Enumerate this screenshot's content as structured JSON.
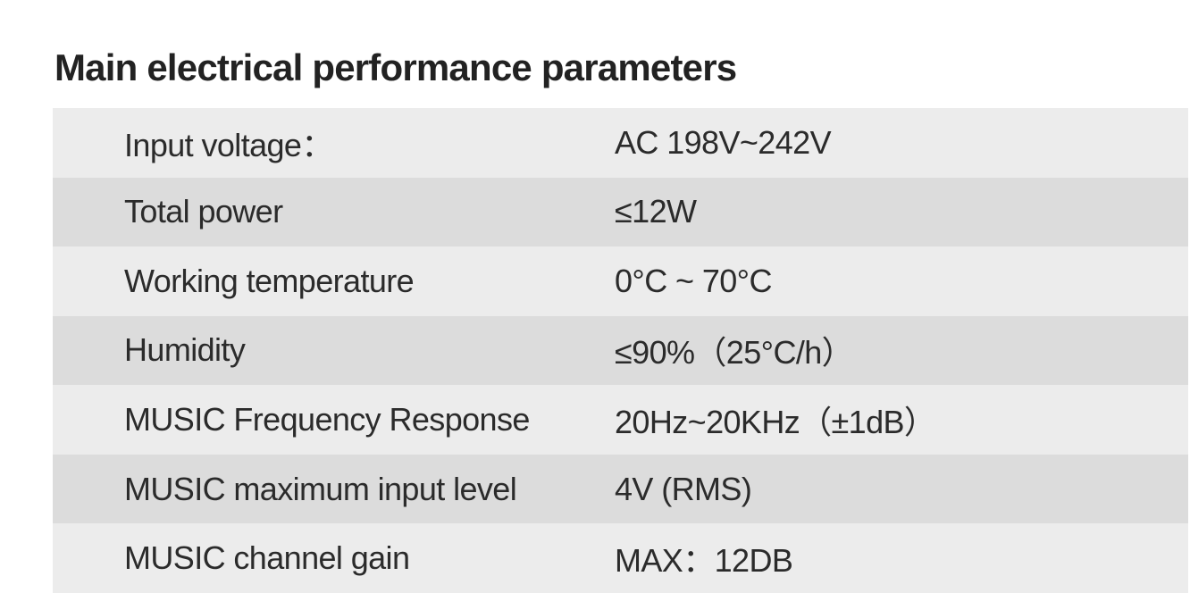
{
  "title": "Main electrical performance parameters",
  "parameters": [
    {
      "label": "Input voltage：",
      "value": "AC 198V~242V"
    },
    {
      "label": "Total power",
      "value": "≤12W"
    },
    {
      "label": "Working temperature",
      "value": "0°C ~ 70°C"
    },
    {
      "label": "Humidity",
      "value": "≤90%（25°C/h）"
    },
    {
      "label": "MUSIC Frequency Response",
      "value": "20Hz~20KHz（±1dB）"
    },
    {
      "label": "MUSIC maximum input level",
      "value": "4V  (RMS)"
    },
    {
      "label": "MUSIC channel gain",
      "value": "MAX：12DB"
    }
  ],
  "colors": {
    "row_light": "#ececec",
    "row_dark": "#dcdcdc",
    "text": "#2b2b2b",
    "title": "#222222"
  }
}
